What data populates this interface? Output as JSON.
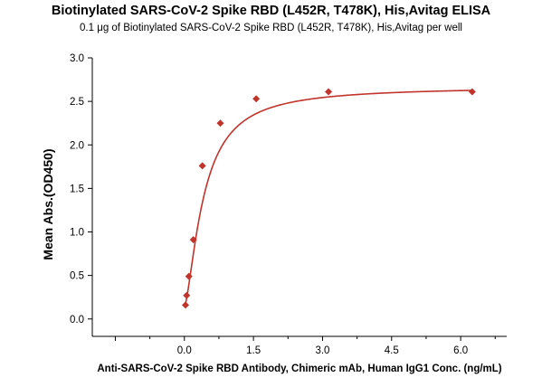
{
  "chart_data": {
    "type": "scatter",
    "title": "Biotinylated SARS-CoV-2 Spike RBD (L452R, T478K), His,Avitag ELISA",
    "subtitle": "0.1 μg of Biotinylated SARS-CoV-2 Spike RBD (L452R, T478K), His,Avitag per well",
    "xlabel": "Anti-SARS-CoV-2 Spike RBD Antibody, Chimeric mAb, Human IgG1 Conc. (ng/mL)",
    "ylabel": "Mean Abs.(OD450)",
    "xlim": [
      -2.0,
      7.0
    ],
    "ylim": [
      -0.2,
      3.0
    ],
    "xticks": [
      "0.0",
      "1.5",
      "3.0",
      "4.5",
      "6.0"
    ],
    "yticks": [
      "0.0",
      "0.5",
      "1.0",
      "1.5",
      "2.0",
      "2.5",
      "3.0"
    ],
    "grid": false,
    "marker_color": "#c0342c",
    "curve_color": "#c0342c",
    "series": [
      {
        "x": [
          0.024,
          0.049,
          0.098,
          0.195,
          0.39,
          0.78,
          1.56,
          3.13,
          6.25
        ],
        "y": [
          0.16,
          0.27,
          0.49,
          0.91,
          1.76,
          2.25,
          2.53,
          2.61,
          2.61
        ]
      }
    ],
    "fit": {
      "type": "4PL",
      "bottom": 0.14,
      "top": 2.67,
      "ec50": 0.42,
      "hill": 1.5
    }
  }
}
